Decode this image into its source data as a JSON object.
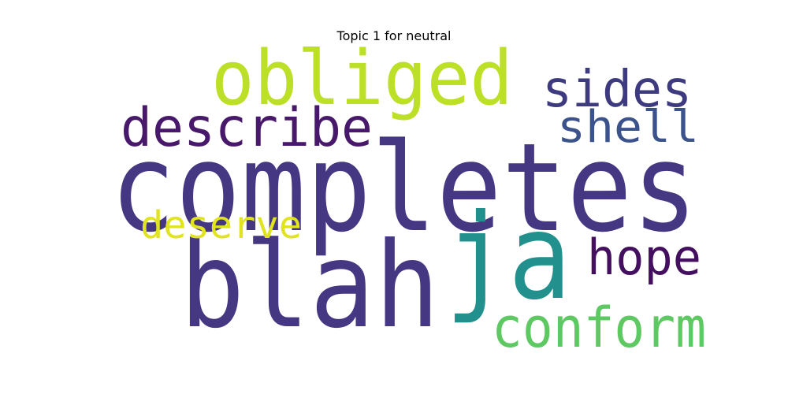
{
  "title": "Topic 1 for neutral",
  "words": [
    {
      "text": "completes",
      "color": "#453781"
    },
    {
      "text": "blah",
      "color": "#453781"
    },
    {
      "text": "ja",
      "color": "#22908c"
    },
    {
      "text": "obliged",
      "color": "#bcdf27"
    },
    {
      "text": "describe",
      "color": "#48186a"
    },
    {
      "text": "sides",
      "color": "#3e3a80"
    },
    {
      "text": "shell",
      "color": "#3b528b"
    },
    {
      "text": "deserve",
      "color": "#e0e31f"
    },
    {
      "text": "hope",
      "color": "#440f5f"
    },
    {
      "text": "conform",
      "color": "#5ec962"
    }
  ]
}
